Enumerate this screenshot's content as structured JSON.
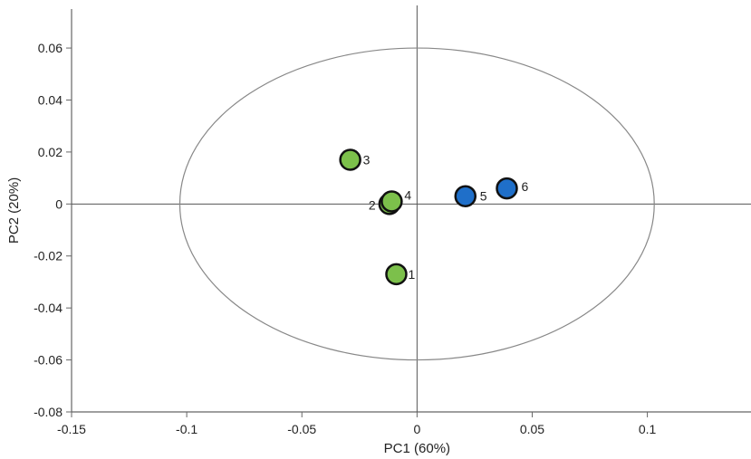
{
  "chart_data": {
    "type": "scatter",
    "xlabel": "PC1 (60%)",
    "ylabel": "PC2 (20%)",
    "xlim": [
      -0.15,
      0.145
    ],
    "ylim": [
      -0.08,
      0.075
    ],
    "x_ticks": [
      -0.15,
      -0.1,
      -0.05,
      0,
      0.05,
      0.1
    ],
    "x_tick_labels": [
      "-0.15",
      "-0.1",
      "-0.05",
      "0",
      "0.05",
      "0.1"
    ],
    "y_ticks": [
      -0.08,
      -0.06,
      -0.04,
      -0.02,
      0,
      0.02,
      0.04,
      0.06
    ],
    "y_tick_labels": [
      "-0.08",
      "-0.06",
      "-0.04",
      "-0.02",
      "0",
      "0.02",
      "0.04",
      "0.06"
    ],
    "grid": false,
    "confidence_ellipse": {
      "center": [
        0,
        0
      ],
      "rx": 0.103,
      "ry": 0.06,
      "color": "#888888"
    },
    "series": [
      {
        "color": "#7cc04b",
        "points": [
          {
            "label": "1",
            "x": -0.009,
            "y": -0.027
          },
          {
            "label": "2",
            "x": -0.012,
            "y": 0.0
          },
          {
            "label": "3",
            "x": -0.029,
            "y": 0.017
          },
          {
            "label": "4",
            "x": -0.011,
            "y": 0.001
          }
        ]
      },
      {
        "color": "#1f6fc9",
        "points": [
          {
            "label": "5",
            "x": 0.021,
            "y": 0.003
          },
          {
            "label": "6",
            "x": 0.039,
            "y": 0.006
          }
        ]
      }
    ]
  }
}
